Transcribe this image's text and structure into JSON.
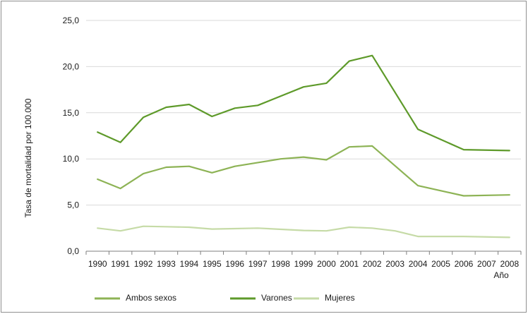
{
  "chart_data": {
    "type": "line",
    "title": "",
    "ylabel": "Tasa de mortalidad por 100.000",
    "xlabel": "Año",
    "ylim": [
      0,
      25
    ],
    "yticks": [
      "0,0",
      "5,0",
      "10,0",
      "15,0",
      "20,0",
      "25,0"
    ],
    "x": [
      "1990",
      "1991",
      "1992",
      "1993",
      "1994",
      "1995",
      "1996",
      "1997",
      "1998",
      "1999",
      "2000",
      "2001",
      "2002",
      "2003",
      "2004",
      "2005",
      "2006",
      "2007",
      "2008"
    ],
    "grid": true,
    "legend_position": "bottom",
    "series": [
      {
        "name": "Ambos sexos",
        "color": "#8db355",
        "values": [
          7.8,
          6.8,
          8.4,
          9.1,
          9.2,
          8.5,
          9.2,
          9.6,
          10.0,
          10.2,
          9.9,
          11.3,
          11.4,
          null,
          7.1,
          null,
          6.0,
          null,
          6.1
        ]
      },
      {
        "name": "Varones",
        "color": "#5e9a2a",
        "values": [
          12.9,
          11.8,
          14.5,
          15.6,
          15.9,
          14.6,
          15.5,
          15.8,
          null,
          17.8,
          18.2,
          20.6,
          21.2,
          null,
          13.2,
          null,
          11.0,
          null,
          10.9
        ]
      },
      {
        "name": "Mujeres",
        "color": "#c6dba7",
        "values": [
          2.5,
          2.2,
          2.7,
          2.65,
          2.6,
          2.4,
          2.45,
          2.5,
          null,
          2.25,
          2.2,
          2.6,
          2.5,
          2.2,
          1.6,
          null,
          1.6,
          null,
          1.5
        ]
      }
    ]
  }
}
